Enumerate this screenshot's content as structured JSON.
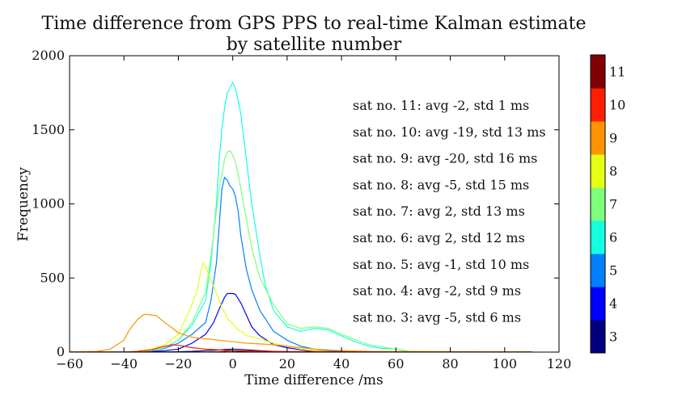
{
  "chart_data": {
    "type": "line",
    "title": "Time difference from GPS PPS to real-time Kalman estimate",
    "subtitle": "by satellite number",
    "xlabel": "Time difference /ms",
    "ylabel": "Frequency",
    "xlim": [
      -60,
      120
    ],
    "ylim": [
      0,
      2000
    ],
    "xticks": [
      -60,
      -40,
      -20,
      0,
      20,
      40,
      60,
      80,
      100,
      120
    ],
    "yticks": [
      0,
      500,
      1000,
      1500,
      2000
    ],
    "grid": false,
    "colorbar": {
      "labels": [
        "3",
        "4",
        "5",
        "6",
        "7",
        "8",
        "9",
        "10",
        "11"
      ],
      "colors": [
        "#00007f",
        "#0000ff",
        "#0080ff",
        "#15ffe1",
        "#7dff7a",
        "#e4ff12",
        "#ff9400",
        "#ff1e00",
        "#7f0000"
      ]
    },
    "annotations": [
      "sat no.  11:  avg -2, std 1 ms",
      "sat no.  10:  avg -19, std 13 ms",
      "sat no.  9:  avg -20, std 16 ms",
      "sat no.  8:  avg -5, std 15 ms",
      "sat no.  7:  avg 2, std 13 ms",
      "sat no.  6:  avg 2, std 12 ms",
      "sat no.  5:  avg -1, std 10 ms",
      "sat no.  4:  avg -2, std 9 ms",
      "sat no.  3:  avg -5, std 6 ms"
    ],
    "series": [
      {
        "name": "3",
        "color": "#00007f",
        "x": [
          -60,
          -30,
          -20,
          -15,
          -10,
          -5,
          -3,
          0,
          3,
          5,
          8,
          10,
          15,
          20,
          30,
          40,
          110
        ],
        "y": [
          0,
          0,
          2,
          5,
          10,
          14,
          18,
          20,
          18,
          15,
          12,
          10,
          5,
          2,
          0,
          0,
          0
        ]
      },
      {
        "name": "4",
        "color": "#0000ff",
        "x": [
          -60,
          -40,
          -30,
          -25,
          -20,
          -15,
          -10,
          -7,
          -5,
          -3,
          -2,
          0,
          1,
          3,
          5,
          7,
          10,
          15,
          20,
          25,
          30,
          40,
          110
        ],
        "y": [
          0,
          0,
          5,
          10,
          20,
          60,
          120,
          200,
          290,
          370,
          395,
          395,
          390,
          330,
          250,
          170,
          110,
          50,
          30,
          15,
          5,
          0,
          0
        ]
      },
      {
        "name": "5",
        "color": "#0080ff",
        "x": [
          -60,
          -35,
          -30,
          -25,
          -20,
          -15,
          -10,
          -8,
          -6,
          -5,
          -4,
          -3,
          -2,
          -1,
          0,
          1,
          2,
          3,
          5,
          7,
          10,
          15,
          20,
          25,
          30,
          35,
          40,
          50,
          110
        ],
        "y": [
          0,
          0,
          10,
          25,
          60,
          120,
          200,
          350,
          600,
          850,
          1100,
          1180,
          1160,
          1120,
          1100,
          1050,
          950,
          780,
          560,
          420,
          280,
          140,
          80,
          40,
          20,
          10,
          5,
          0,
          0
        ]
      },
      {
        "name": "6",
        "color": "#15ffe1",
        "x": [
          -60,
          -40,
          -30,
          -25,
          -20,
          -15,
          -10,
          -8,
          -6,
          -5,
          -4,
          -3,
          -2,
          -1,
          0,
          1,
          2,
          3,
          5,
          7,
          10,
          12,
          15,
          20,
          25,
          30,
          35,
          40,
          45,
          50,
          55,
          60,
          65,
          70,
          110
        ],
        "y": [
          0,
          0,
          10,
          30,
          80,
          180,
          350,
          600,
          1000,
          1300,
          1500,
          1650,
          1750,
          1780,
          1820,
          1780,
          1700,
          1600,
          1300,
          1000,
          650,
          450,
          280,
          170,
          140,
          160,
          150,
          110,
          70,
          40,
          25,
          20,
          5,
          0,
          0
        ]
      },
      {
        "name": "7",
        "color": "#7dff7a",
        "x": [
          -60,
          -40,
          -30,
          -25,
          -20,
          -15,
          -10,
          -8,
          -6,
          -5,
          -4,
          -3,
          -2,
          -1,
          0,
          1,
          2,
          3,
          5,
          7,
          10,
          15,
          20,
          25,
          30,
          35,
          40,
          50,
          60,
          65,
          110
        ],
        "y": [
          0,
          0,
          10,
          30,
          80,
          200,
          400,
          650,
          950,
          1100,
          1200,
          1300,
          1350,
          1360,
          1330,
          1280,
          1200,
          1100,
          900,
          700,
          500,
          320,
          190,
          160,
          170,
          160,
          120,
          50,
          20,
          5,
          0
        ]
      },
      {
        "name": "8",
        "color": "#e4ff12",
        "x": [
          -60,
          -40,
          -35,
          -30,
          -25,
          -20,
          -18,
          -15,
          -13,
          -12,
          -11,
          -10,
          -8,
          -6,
          -5,
          -4,
          -3,
          -2,
          -1,
          0,
          2,
          4,
          5,
          8,
          10,
          15,
          20,
          25,
          30,
          40,
          110
        ],
        "y": [
          0,
          0,
          5,
          20,
          50,
          120,
          200,
          320,
          420,
          520,
          600,
          580,
          480,
          400,
          350,
          300,
          270,
          230,
          210,
          190,
          150,
          130,
          110,
          100,
          90,
          60,
          40,
          20,
          10,
          0,
          0
        ]
      },
      {
        "name": "9",
        "color": "#ff9400",
        "x": [
          -60,
          -50,
          -45,
          -40,
          -38,
          -35,
          -33,
          -32,
          -30,
          -28,
          -27,
          -25,
          -22,
          -20,
          -15,
          -10,
          -5,
          0,
          5,
          10,
          15,
          20,
          25,
          30,
          40,
          50,
          110
        ],
        "y": [
          0,
          5,
          20,
          80,
          150,
          220,
          250,
          255,
          250,
          245,
          230,
          200,
          160,
          130,
          100,
          90,
          80,
          70,
          60,
          55,
          50,
          40,
          30,
          20,
          10,
          5,
          0
        ]
      },
      {
        "name": "10",
        "color": "#ff1e00",
        "x": [
          -60,
          -40,
          -35,
          -30,
          -25,
          -22,
          -20,
          -18,
          -15,
          -10,
          -5,
          0,
          5,
          10,
          20,
          30,
          40,
          50,
          60,
          80,
          100,
          110
        ],
        "y": [
          0,
          0,
          5,
          15,
          40,
          50,
          45,
          40,
          30,
          20,
          15,
          10,
          8,
          6,
          4,
          3,
          2,
          1,
          0,
          0,
          0,
          0
        ]
      },
      {
        "name": "11",
        "color": "#7f0000",
        "x": [
          -60,
          -10,
          -5,
          -3,
          -2,
          -1,
          0,
          1,
          3,
          5,
          10,
          110
        ],
        "y": [
          0,
          0,
          2,
          5,
          7,
          8,
          8,
          7,
          5,
          2,
          0,
          0
        ]
      }
    ]
  }
}
